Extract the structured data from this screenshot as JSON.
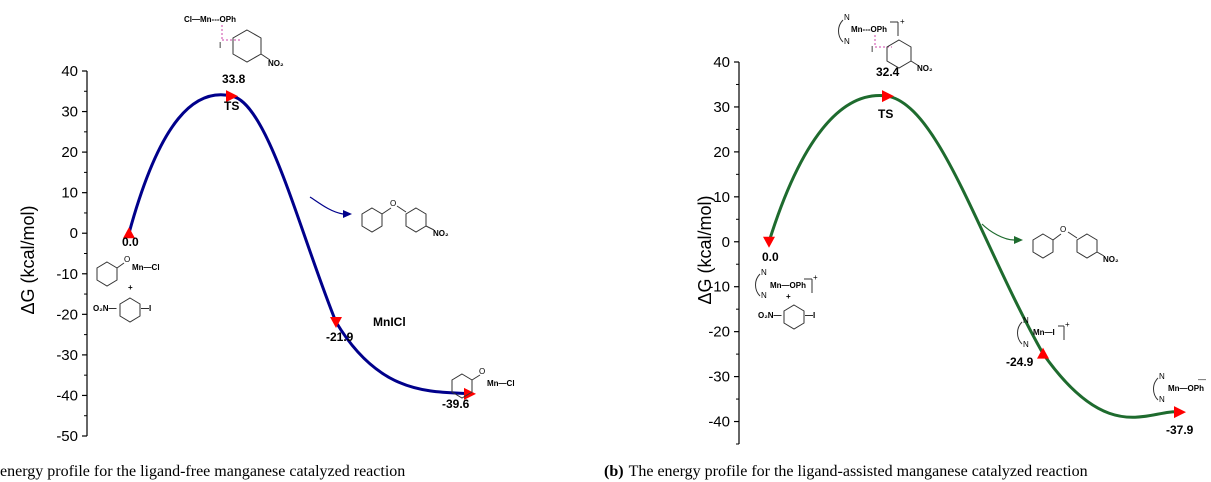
{
  "chart_data": [
    {
      "type": "line",
      "panel": "a",
      "caption": "energy profile for the ligand-free manganese catalyzed reaction",
      "ylabel": "ΔG (kcal/mol)",
      "ylim": [
        -50,
        40
      ],
      "yticks": [
        "40",
        "30",
        "20",
        "10",
        "0",
        "-10",
        "-20",
        "-30",
        "-40",
        "-50"
      ],
      "line_color": "#00008b",
      "marker_color": "#ff0000",
      "points": [
        {
          "label": "0.0",
          "value": 0.0,
          "name": ""
        },
        {
          "label": "33.8",
          "value": 33.8,
          "name": "TS"
        },
        {
          "label": "-21.9",
          "value": -21.9,
          "name": "MnICl"
        },
        {
          "label": "-39.6",
          "value": -39.6,
          "name": ""
        }
      ],
      "species": {
        "ts": "Cl—Mn---OPh",
        "reactant_cat": "Mn—Cl",
        "reactant_plus": "+",
        "reactant_sub_left": "O₂N—",
        "reactant_sub_right": "—I",
        "product_no2": "NO₂",
        "end_cat": "Mn—Cl",
        "ts_no2": "NO₂",
        "ts_i": "I"
      }
    },
    {
      "type": "line",
      "panel": "b",
      "caption_prefix": "(b)",
      "caption": "The energy profile for the ligand-assisted manganese catalyzed reaction",
      "ylabel": "ΔG (kcal/mol)",
      "ylim": [
        -45,
        40
      ],
      "yticks": [
        "40",
        "30",
        "20",
        "10",
        "0",
        "-10",
        "-20",
        "-30",
        "-40"
      ],
      "line_color": "#1e6b2e",
      "marker_color": "#ff0000",
      "points": [
        {
          "label": "0.0",
          "value": 0.0,
          "name": ""
        },
        {
          "label": "32.4",
          "value": 32.4,
          "name": "TS"
        },
        {
          "label": "-24.9",
          "value": -24.9,
          "name": ""
        },
        {
          "label": "-37.9",
          "value": -37.9,
          "name": ""
        }
      ],
      "species": {
        "ts": "Mn---OPh",
        "reactant_cat": "Mn—OPh",
        "reactant_plus": "+",
        "reactant_sub_left": "O₂N—",
        "reactant_sub_right": "—I",
        "product_no2": "NO₂",
        "mid_cat": "Mn—I",
        "end_cat": "Mn—OPh",
        "ts_no2": "NO₂",
        "ts_i": "I",
        "n_label": "N",
        "charge_plus": "+",
        "charge_minus": "—"
      }
    }
  ]
}
